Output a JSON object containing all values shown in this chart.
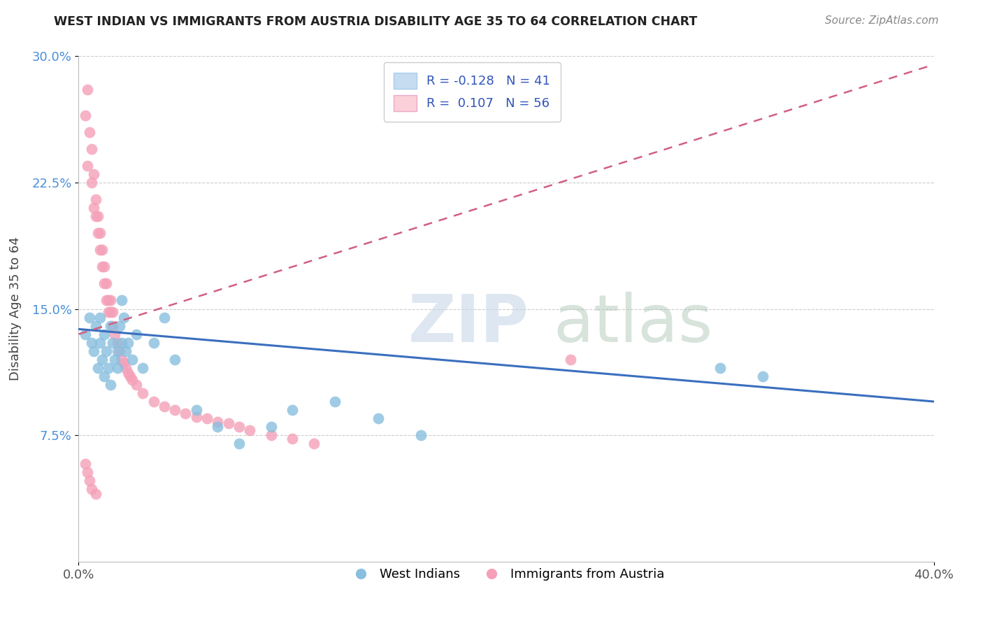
{
  "title": "WEST INDIAN VS IMMIGRANTS FROM AUSTRIA DISABILITY AGE 35 TO 64 CORRELATION CHART",
  "source": "Source: ZipAtlas.com",
  "ylabel": "Disability Age 35 to 64",
  "xlim": [
    0.0,
    0.4
  ],
  "ylim": [
    0.0,
    0.3
  ],
  "xticks": [
    0.0,
    0.4
  ],
  "xtick_labels": [
    "0.0%",
    "40.0%"
  ],
  "yticks": [
    0.075,
    0.15,
    0.225,
    0.3
  ],
  "ytick_labels": [
    "7.5%",
    "15.0%",
    "22.5%",
    "30.0%"
  ],
  "legend1_r": "-0.128",
  "legend1_n": "41",
  "legend2_r": "0.107",
  "legend2_n": "56",
  "blue_color": "#88bfdf",
  "pink_color": "#f4a0b8",
  "blue_fill": "#c6dcf0",
  "pink_fill": "#fbd0d8",
  "trend_blue": "#3a6fbf",
  "trend_pink": "#d06080",
  "west_indians_x": [
    0.003,
    0.005,
    0.006,
    0.007,
    0.008,
    0.009,
    0.01,
    0.01,
    0.011,
    0.012,
    0.012,
    0.013,
    0.014,
    0.015,
    0.015,
    0.016,
    0.017,
    0.018,
    0.018,
    0.019,
    0.02,
    0.02,
    0.021,
    0.022,
    0.023,
    0.025,
    0.027,
    0.03,
    0.035,
    0.04,
    0.045,
    0.055,
    0.065,
    0.075,
    0.09,
    0.1,
    0.12,
    0.14,
    0.16,
    0.3,
    0.32
  ],
  "west_indians_y": [
    0.135,
    0.145,
    0.13,
    0.125,
    0.14,
    0.115,
    0.13,
    0.145,
    0.12,
    0.11,
    0.135,
    0.125,
    0.115,
    0.14,
    0.105,
    0.13,
    0.12,
    0.125,
    0.115,
    0.14,
    0.155,
    0.13,
    0.145,
    0.125,
    0.13,
    0.12,
    0.135,
    0.115,
    0.13,
    0.145,
    0.12,
    0.09,
    0.08,
    0.07,
    0.08,
    0.09,
    0.095,
    0.085,
    0.075,
    0.115,
    0.11
  ],
  "austria_x": [
    0.003,
    0.004,
    0.004,
    0.005,
    0.006,
    0.006,
    0.007,
    0.007,
    0.008,
    0.008,
    0.009,
    0.009,
    0.01,
    0.01,
    0.011,
    0.011,
    0.012,
    0.012,
    0.013,
    0.013,
    0.014,
    0.014,
    0.015,
    0.015,
    0.016,
    0.016,
    0.017,
    0.018,
    0.019,
    0.02,
    0.021,
    0.022,
    0.023,
    0.024,
    0.025,
    0.027,
    0.03,
    0.035,
    0.04,
    0.045,
    0.05,
    0.055,
    0.06,
    0.065,
    0.07,
    0.075,
    0.08,
    0.09,
    0.1,
    0.11,
    0.003,
    0.004,
    0.005,
    0.006,
    0.008,
    0.23
  ],
  "austria_y": [
    0.265,
    0.28,
    0.235,
    0.255,
    0.225,
    0.245,
    0.21,
    0.23,
    0.205,
    0.215,
    0.195,
    0.205,
    0.185,
    0.195,
    0.175,
    0.185,
    0.165,
    0.175,
    0.155,
    0.165,
    0.148,
    0.155,
    0.148,
    0.155,
    0.14,
    0.148,
    0.135,
    0.13,
    0.125,
    0.12,
    0.118,
    0.115,
    0.112,
    0.11,
    0.108,
    0.105,
    0.1,
    0.095,
    0.092,
    0.09,
    0.088,
    0.086,
    0.085,
    0.083,
    0.082,
    0.08,
    0.078,
    0.075,
    0.073,
    0.07,
    0.058,
    0.053,
    0.048,
    0.043,
    0.04,
    0.12
  ]
}
